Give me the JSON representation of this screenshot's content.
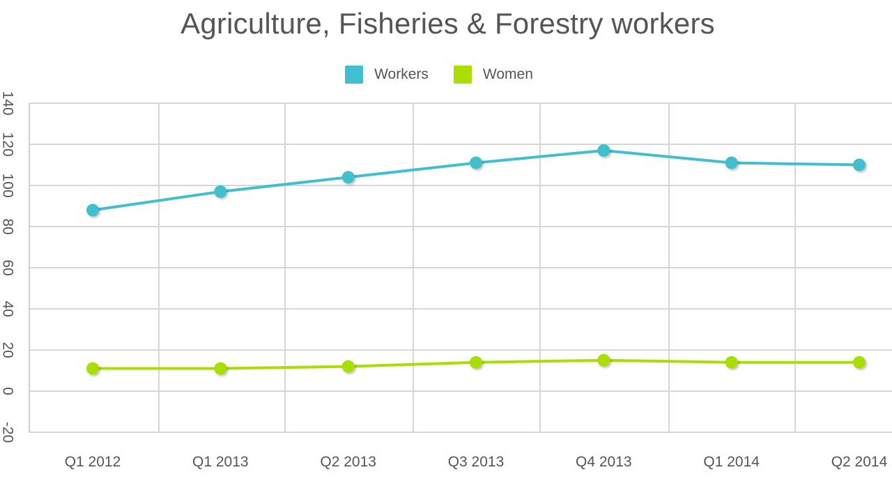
{
  "chart_data": {
    "type": "line",
    "title": "Agriculture, Fisheries & Forestry workers",
    "categories": [
      "Q1 2012",
      "Q1 2013",
      "Q2 2013",
      "Q3 2013",
      "Q4 2013",
      "Q1 2014",
      "Q2 2014"
    ],
    "series": [
      {
        "name": "Workers",
        "color": "#3fbfcf",
        "values": [
          88,
          97,
          104,
          111,
          117,
          111,
          110
        ]
      },
      {
        "name": "Women",
        "color": "#aadd00",
        "values": [
          11,
          11,
          12,
          14,
          15,
          14,
          14
        ]
      }
    ],
    "ylim": [
      -20,
      140
    ],
    "yticks": [
      "-20",
      "0",
      "20",
      "40",
      "60",
      "80",
      "100",
      "120",
      "140"
    ],
    "grid": true,
    "legend_position": "top-center"
  }
}
